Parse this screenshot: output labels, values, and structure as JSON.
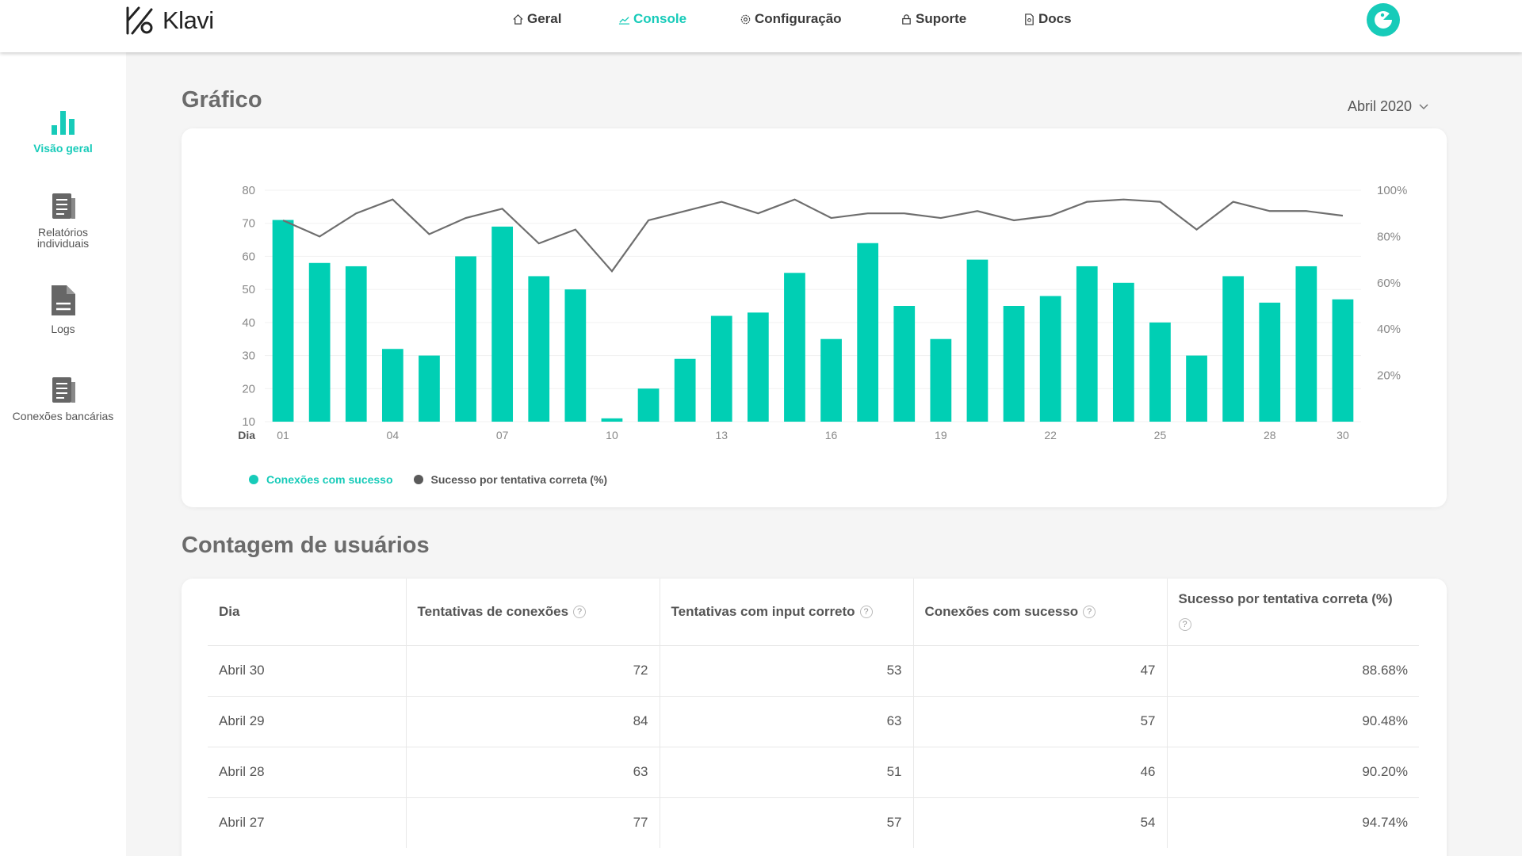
{
  "app": {
    "name": "Klavi"
  },
  "nav": [
    {
      "label": "Geral",
      "icon": "home-icon"
    },
    {
      "label": "Console",
      "icon": "chart-line-icon",
      "active": true
    },
    {
      "label": "Configuração",
      "icon": "gear-icon"
    },
    {
      "label": "Suporte",
      "icon": "lock-icon"
    },
    {
      "label": "Docs",
      "icon": "document-search-icon"
    }
  ],
  "sidebar": {
    "items": [
      {
        "label": "Visão geral",
        "icon": "bar-chart-icon",
        "active": true
      },
      {
        "label": "Relatórios\nindividuais",
        "icon": "report-icon"
      },
      {
        "label": "Logs",
        "icon": "file-icon"
      },
      {
        "label": "Conexões bancárias",
        "icon": "bank-report-icon"
      }
    ]
  },
  "chart_section": {
    "title": "Gráfico",
    "month": "Abril 2020"
  },
  "chart_data": {
    "type": "bar",
    "xlabel": "Dia",
    "categories": [
      "01",
      "02",
      "03",
      "04",
      "05",
      "06",
      "07",
      "08",
      "09",
      "10",
      "11",
      "12",
      "13",
      "14",
      "15",
      "16",
      "17",
      "18",
      "19",
      "20",
      "21",
      "22",
      "23",
      "24",
      "25",
      "26",
      "27",
      "28",
      "29",
      "30"
    ],
    "x_tick_labels": [
      "01",
      "04",
      "07",
      "10",
      "13",
      "16",
      "19",
      "22",
      "25",
      "28",
      "30"
    ],
    "ylim": [
      10,
      80
    ],
    "yticks": [
      10,
      20,
      30,
      40,
      50,
      60,
      70,
      80
    ],
    "y2lim": [
      0,
      100
    ],
    "y2ticks": [
      "20%",
      "40%",
      "60%",
      "80%",
      "100%"
    ],
    "series": [
      {
        "name": "Conexões com sucesso",
        "type": "bar",
        "axis": "left",
        "color": "#00cfb4",
        "values": [
          71,
          58,
          57,
          32,
          30,
          60,
          69,
          54,
          50,
          11,
          20,
          29,
          42,
          43,
          55,
          35,
          64,
          45,
          35,
          59,
          45,
          48,
          57,
          52,
          40,
          30,
          54,
          46,
          57,
          47
        ]
      },
      {
        "name": "Sucesso por tentativa correta (%)",
        "type": "line",
        "axis": "right",
        "color": "#6e6e6e",
        "values": [
          87,
          80,
          90,
          96,
          81,
          88,
          92,
          77,
          83,
          65,
          87,
          91,
          95,
          90,
          96,
          88,
          90,
          90,
          88,
          91,
          87,
          89,
          95,
          96,
          95,
          83,
          95,
          91,
          91,
          89
        ]
      }
    ]
  },
  "table_section": {
    "title": "Contagem de usuários",
    "headers": [
      "Dia",
      "Tentativas de conexões",
      "Tentativas com input correto",
      "Conexões com sucesso",
      "Sucesso por tentativa correta (%)"
    ],
    "help_glyph": "?",
    "rows": [
      [
        "Abril 30",
        "72",
        "53",
        "47",
        "88.68%"
      ],
      [
        "Abril 29",
        "84",
        "63",
        "57",
        "90.48%"
      ],
      [
        "Abril 28",
        "63",
        "51",
        "46",
        "90.20%"
      ],
      [
        "Abril 27",
        "77",
        "57",
        "54",
        "94.74%"
      ]
    ]
  },
  "colors": {
    "accent": "#17cbb9",
    "bar": "#00cfb4",
    "line": "#6e6e6e"
  }
}
